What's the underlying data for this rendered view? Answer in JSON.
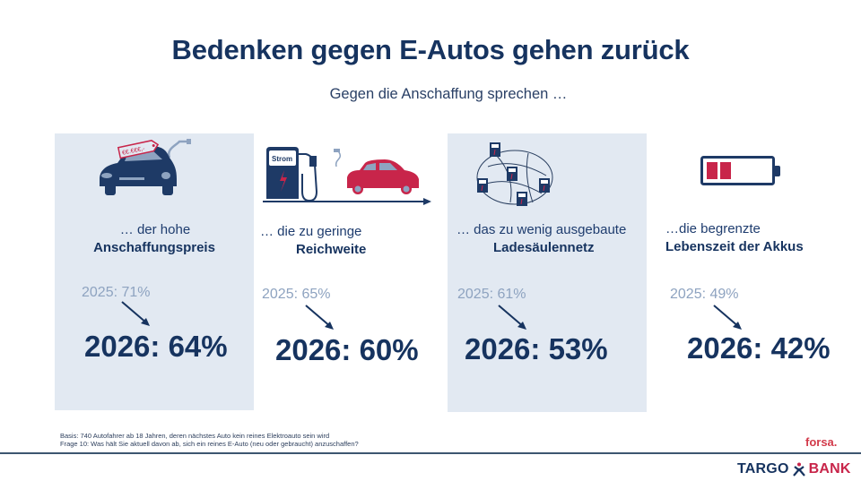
{
  "header": {
    "title": "Bedenken gegen E-Autos gehen zurück",
    "subtitle": "Gegen die Anschaffung sprechen …"
  },
  "panels": [
    {
      "icon": "car-price-tag-icon",
      "price_tag": "€€.€€€,-",
      "line1": "… der hohe",
      "line2": "Anschaffungspreis",
      "y2025": "2025: 71%",
      "y2026": "2026: 64%",
      "shaded": true
    },
    {
      "icon": "charging-range-icon",
      "pump_label": "Strom",
      "line1": "… die zu geringe",
      "line2": "Reichweite",
      "y2025": "2025: 65%",
      "y2026": "2026: 60%",
      "shaded": false
    },
    {
      "icon": "charging-network-icon",
      "line1": "… das zu wenig ausgebaute",
      "line2": "Ladesäulennetz",
      "y2025": "2025: 61%",
      "y2026": "2026: 53%",
      "shaded": true
    },
    {
      "icon": "low-battery-icon",
      "line1": "…die begrenzte",
      "line2": "Lebenszeit der Akkus",
      "y2025": "2025: 49%",
      "y2026": "2026: 42%",
      "shaded": false
    }
  ],
  "footnote": {
    "basis": "Basis: 740 Autofahrer ab 18 Jahren, deren nächstes Auto kein reines Elektroauto sein wird",
    "question": "Frage 10: Was hält Sie aktuell davon ab, sich ein reines E-Auto (neu oder gebraucht) anzuschaffen?"
  },
  "branding": {
    "forsa": "forsa.",
    "logo_left": "TARGO",
    "logo_right": "BANK"
  },
  "colors": {
    "navy": "#16335f",
    "red": "#c8254a",
    "panel_shade": "#e2e9f2",
    "muted": "#8ea3c0"
  }
}
